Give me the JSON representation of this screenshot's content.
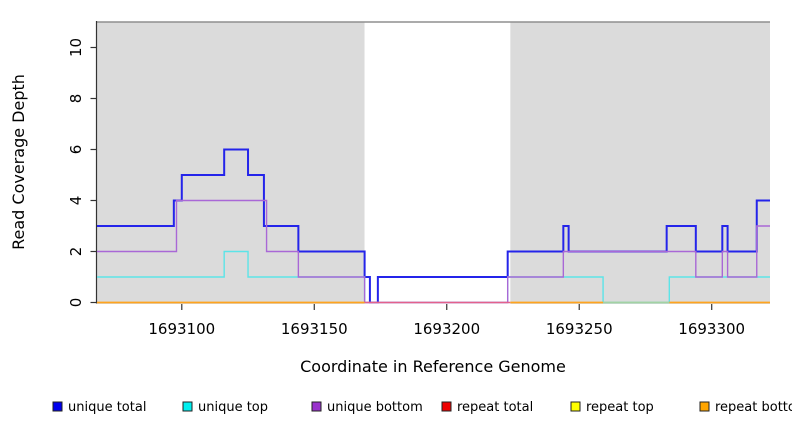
{
  "chart_data": {
    "type": "line",
    "subtype": "step-coverage-plot",
    "title": "",
    "xlabel": "Coordinate in Reference Genome",
    "ylabel": "Read Coverage Depth",
    "xlim": [
      1693068,
      1693322
    ],
    "ylim": [
      0,
      11
    ],
    "grid": false,
    "legend_position": "bottom",
    "x_ticks": [
      1693100,
      1693150,
      1693200,
      1693250,
      1693300
    ],
    "y_ticks": [
      0,
      2,
      4,
      6,
      8,
      10
    ],
    "background_regions": [
      {
        "name": "shaded-region-left",
        "from": 1693068,
        "to": 1693169,
        "color": "#DBDBDB"
      },
      {
        "name": "white-gap",
        "from": 1693169,
        "to": 1693224,
        "color": "#FFFFFF"
      },
      {
        "name": "shaded-region-right",
        "from": 1693224,
        "to": 1693322,
        "color": "#DBDBDB"
      }
    ],
    "series": [
      {
        "name": "unique total",
        "legend_color": "#0000EE",
        "rendered_color": "#2424EA",
        "line_width": 2,
        "runs": [
          [
            [
              1693068,
              3
            ],
            [
              1693097,
              4
            ],
            [
              1693100,
              5
            ],
            [
              1693116,
              6
            ],
            [
              1693125,
              5
            ],
            [
              1693131,
              3
            ],
            [
              1693144,
              2
            ],
            [
              1693169,
              1
            ],
            [
              1693171,
              0
            ],
            [
              1693174,
              1
            ],
            [
              1693223,
              2
            ],
            [
              1693244,
              3
            ],
            [
              1693246,
              2
            ],
            [
              1693283,
              3
            ],
            [
              1693294,
              2
            ],
            [
              1693304,
              3
            ],
            [
              1693306,
              2
            ],
            [
              1693317,
              4
            ],
            [
              1693322,
              4
            ]
          ]
        ]
      },
      {
        "name": "unique top",
        "legend_color": "#00EFEF",
        "rendered_color": "#5CE4E8",
        "line_width": 1.4,
        "runs": [
          [
            [
              1693068,
              1
            ],
            [
              1693116,
              2
            ],
            [
              1693125,
              1
            ],
            [
              1693169,
              0
            ],
            [
              1693223,
              1
            ],
            [
              1693259,
              0
            ],
            [
              1693284,
              1
            ],
            [
              1693322,
              1
            ]
          ]
        ]
      },
      {
        "name": "unique bottom",
        "legend_color": "#9932CC",
        "rendered_color": "#A968D6",
        "line_width": 1.4,
        "runs": [
          [
            [
              1693068,
              2
            ],
            [
              1693098,
              4
            ],
            [
              1693132,
              2
            ],
            [
              1693144,
              1
            ],
            [
              1693169,
              0
            ],
            [
              1693223,
              1
            ],
            [
              1693244,
              2
            ],
            [
              1693294,
              1
            ],
            [
              1693304,
              2
            ],
            [
              1693306,
              1
            ],
            [
              1693317,
              3
            ],
            [
              1693322,
              3
            ]
          ]
        ]
      },
      {
        "name": "repeat total",
        "legend_color": "#EE0000",
        "rendered_color": "#E4618C",
        "line_width": 1.5,
        "runs": [
          [
            [
              1693169,
              0
            ],
            [
              1693224,
              0
            ]
          ]
        ]
      },
      {
        "name": "repeat top",
        "legend_color": "#FFFF00",
        "rendered_color": "#A3D2A3",
        "line_width": 1.8,
        "runs": [
          [
            [
              1693259,
              0
            ],
            [
              1693284,
              0
            ]
          ]
        ]
      },
      {
        "name": "repeat bottom",
        "legend_color": "#FFA500",
        "rendered_color": "#FFA41E",
        "line_width": 1.8,
        "runs": [
          [
            [
              1693068,
              0
            ],
            [
              1693169,
              0
            ]
          ],
          [
            [
              1693224,
              0
            ],
            [
              1693259,
              0
            ]
          ],
          [
            [
              1693284,
              0
            ],
            [
              1693322,
              0
            ]
          ]
        ]
      }
    ],
    "legend": [
      {
        "label": "unique total",
        "color": "#0000EE"
      },
      {
        "label": "unique top",
        "color": "#00EFEF"
      },
      {
        "label": "unique bottom",
        "color": "#9932CC"
      },
      {
        "label": "repeat total",
        "color": "#EE0000"
      },
      {
        "label": "repeat top",
        "color": "#FFFF00"
      },
      {
        "label": "repeat bottom",
        "color": "#FFA500"
      }
    ]
  }
}
